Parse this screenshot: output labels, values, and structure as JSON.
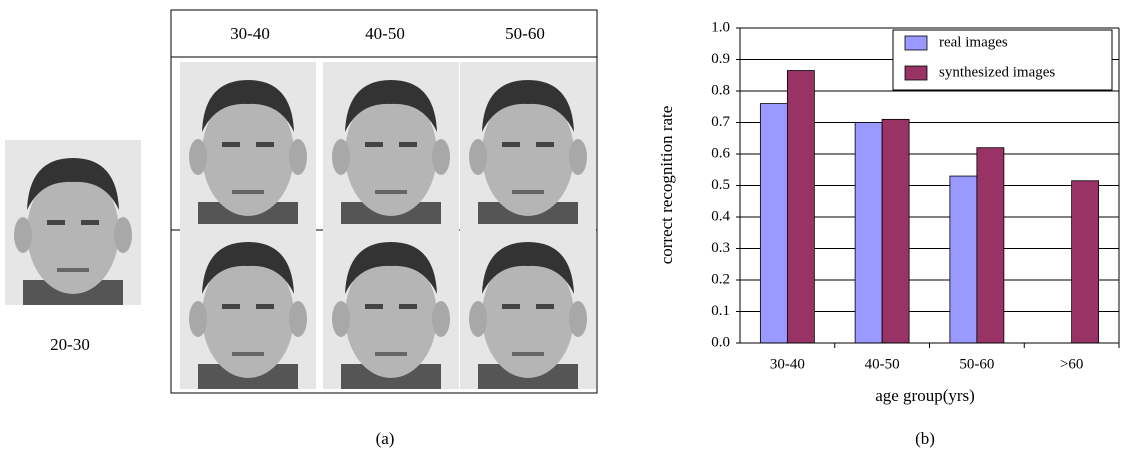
{
  "figure": {
    "source_label": "20-30",
    "column_headers": [
      "30-40",
      "40-50",
      "50-60"
    ],
    "caption_a": "(a)",
    "caption_b": "(b)"
  },
  "chart_data": {
    "type": "bar",
    "x_label": "age group(yrs)",
    "y_label": "correct recognition rate",
    "categories": [
      "30-40",
      "40-50",
      "50-60",
      ">60"
    ],
    "series": [
      {
        "name": "real images",
        "color": "#9999ff",
        "values": [
          0.76,
          0.7,
          0.53,
          null
        ]
      },
      {
        "name": "synthesized images",
        "color": "#993366",
        "values": [
          0.865,
          0.71,
          0.62,
          0.515
        ]
      }
    ],
    "ylim": [
      0,
      1
    ],
    "yticks": [
      {
        "value": 0,
        "label": "0.0"
      },
      0.1,
      0.2,
      0.3,
      0.4,
      0.5,
      0.6,
      0.7,
      0.8,
      0.9,
      {
        "value": 1,
        "label": "1.0"
      }
    ],
    "grid": true,
    "legend": "top-right"
  }
}
